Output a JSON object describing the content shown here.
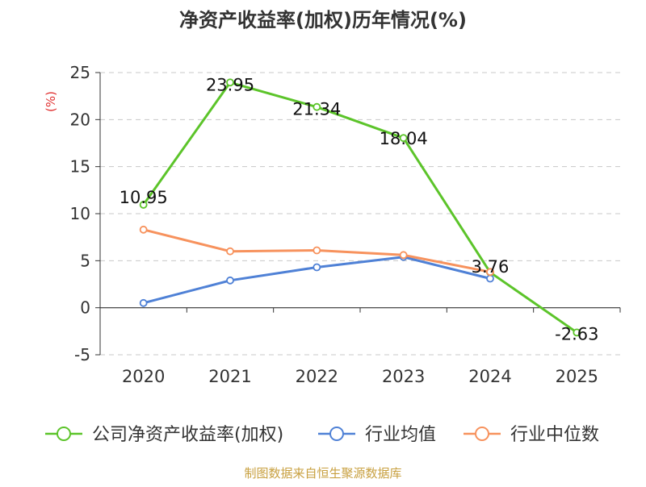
{
  "chart_data": {
    "type": "line",
    "title": "净资产收益率(加权)历年情况(%)",
    "ylabel": "(%)",
    "x": [
      "2020",
      "2021",
      "2022",
      "2023",
      "2024",
      "2025"
    ],
    "ylim": [
      -5,
      25
    ],
    "yticks": [
      -5,
      0,
      5,
      10,
      15,
      20,
      25
    ],
    "grid": true,
    "legend_position": "bottom",
    "series": [
      {
        "name": "公司净资产收益率(加权)",
        "color": "#5cc42a",
        "values": [
          10.95,
          23.95,
          21.34,
          18.04,
          3.76,
          -2.63
        ],
        "labels": [
          "10.95",
          "23.95",
          "21.34",
          "18.04",
          "3.76",
          "-2.63"
        ]
      },
      {
        "name": "行业均值",
        "color": "#4f81d6",
        "values": [
          0.5,
          2.9,
          4.3,
          5.4,
          3.1,
          null
        ]
      },
      {
        "name": "行业中位数",
        "color": "#f7925d",
        "values": [
          8.3,
          6.0,
          6.1,
          5.6,
          3.8,
          null
        ]
      }
    ]
  },
  "source": "制图数据来自恒生聚源数据库"
}
